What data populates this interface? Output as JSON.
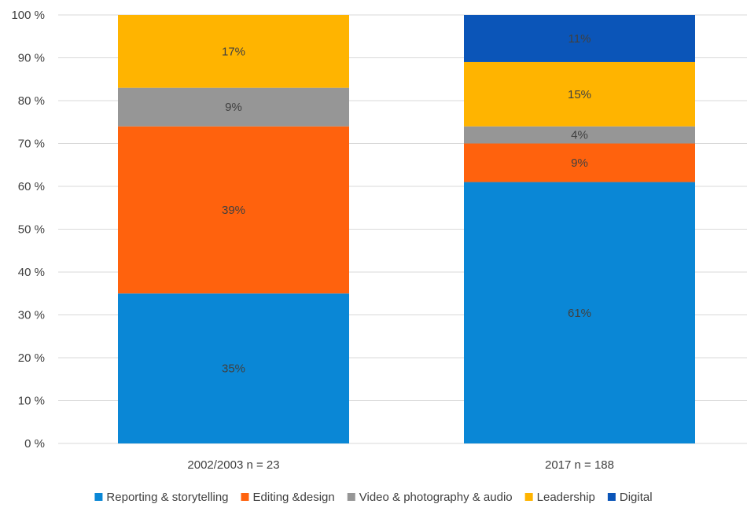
{
  "chart_data": {
    "type": "bar",
    "stacked": true,
    "title": "",
    "xlabel": "",
    "ylabel": "",
    "ylim": [
      0,
      100
    ],
    "y_ticks": [
      "0 %",
      "10 %",
      "20 %",
      "30 %",
      "40 %",
      "50 %",
      "60 %",
      "70 %",
      "80 %",
      "90 %",
      "100 %"
    ],
    "y_tick_values": [
      0,
      10,
      20,
      30,
      40,
      50,
      60,
      70,
      80,
      90,
      100
    ],
    "categories": [
      "2002/2003 n = 23",
      "2017 n = 188"
    ],
    "grid": true,
    "legend_position": "bottom",
    "series": [
      {
        "name": "Reporting & storytelling",
        "color": "#0a87d6",
        "values": [
          35,
          61
        ],
        "labels": [
          "35%",
          "61%"
        ]
      },
      {
        "name": "Editing &design",
        "color": "#ff620d",
        "values": [
          39,
          9
        ],
        "labels": [
          "39%",
          "9%"
        ]
      },
      {
        "name": "Video & photography & audio",
        "color": "#969696",
        "values": [
          9,
          4
        ],
        "labels": [
          "9%",
          "4%"
        ]
      },
      {
        "name": "Leadership",
        "color": "#ffb400",
        "values": [
          17,
          15
        ],
        "labels": [
          "17%",
          "15%"
        ]
      },
      {
        "name": "Digital",
        "color": "#0b55b8",
        "values": [
          0,
          11
        ],
        "labels": [
          "",
          "11%"
        ]
      }
    ]
  }
}
